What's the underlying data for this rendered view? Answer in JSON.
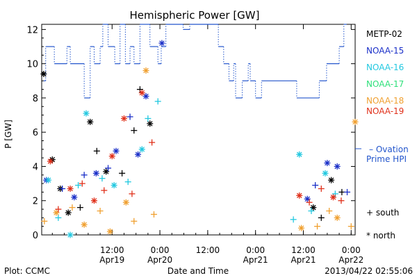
{
  "chart_data": {
    "type": "scatter",
    "title": "Hemispheric Power [GW]",
    "ylabel": "P [GW]",
    "xlabel": "Date and Time",
    "ylim": [
      0,
      12.3
    ],
    "yticks": [
      0,
      2,
      4,
      6,
      8,
      10,
      12
    ],
    "xlim": [
      "2013-04-18 18:20",
      "2013-04-22 01:00"
    ],
    "xticks": [
      {
        "time": "2013-04-19 12:00",
        "line1": "12:00",
        "line2": "Apr19"
      },
      {
        "time": "2013-04-20 00:00",
        "line1": "0:00",
        "line2": "Apr20"
      },
      {
        "time": "2013-04-20 12:00",
        "line1": "12:00",
        "line2": ""
      },
      {
        "time": "2013-04-21 00:00",
        "line1": "0:00",
        "line2": "Apr21"
      },
      {
        "time": "2013-04-21 12:00",
        "line1": "12:00",
        "line2": "Apr21"
      },
      {
        "time": "2013-04-22 00:00",
        "line1": "0:00",
        "line2": "Apr22"
      }
    ],
    "grid": false,
    "legend": {
      "placement": "right",
      "entries": [
        {
          "name": "METP-02",
          "color": "#000000"
        },
        {
          "name": "NOAA-15",
          "color": "#1a2fc8"
        },
        {
          "name": "NOAA-16",
          "color": "#22c8e0"
        },
        {
          "name": "NOAA-17",
          "color": "#2ee07a"
        },
        {
          "name": "NOAA-18",
          "color": "#f0a030"
        },
        {
          "name": "NOAA-19",
          "color": "#e0301a"
        }
      ],
      "ovation_label_1": "– Ovation",
      "ovation_label_2": "Prime HPI",
      "ovation_color": "#2255cc",
      "south_label": "+ south",
      "north_label": "* north"
    },
    "ovation_series": {
      "name": "Ovation Prime HPI",
      "points": [
        [
          "2013-04-18 18:50",
          9
        ],
        [
          "2013-04-18 19:20",
          11
        ],
        [
          "2013-04-18 21:30",
          10
        ],
        [
          "2013-04-19 00:40",
          11
        ],
        [
          "2013-04-19 01:30",
          10
        ],
        [
          "2013-04-19 05:00",
          8
        ],
        [
          "2013-04-19 06:30",
          11
        ],
        [
          "2013-04-19 07:30",
          10
        ],
        [
          "2013-04-19 09:00",
          11
        ],
        [
          "2013-04-19 09:40",
          12.3
        ],
        [
          "2013-04-19 11:00",
          11
        ],
        [
          "2013-04-19 12:40",
          10
        ],
        [
          "2013-04-19 14:00",
          12.3
        ],
        [
          "2013-04-19 15:20",
          10
        ],
        [
          "2013-04-19 16:30",
          11
        ],
        [
          "2013-04-19 17:30",
          10
        ],
        [
          "2013-04-19 19:00",
          12.3
        ],
        [
          "2013-04-19 21:30",
          11
        ],
        [
          "2013-04-19 23:30",
          10
        ],
        [
          "2013-04-20 00:20",
          11
        ],
        [
          "2013-04-20 01:30",
          12.3
        ],
        [
          "2013-04-20 05:50",
          12
        ],
        [
          "2013-04-20 07:30",
          12.3
        ],
        [
          "2013-04-20 14:40",
          11
        ],
        [
          "2013-04-20 16:00",
          10
        ],
        [
          "2013-04-20 17:20",
          9
        ],
        [
          "2013-04-20 18:30",
          10
        ],
        [
          "2013-04-20 19:00",
          8
        ],
        [
          "2013-04-20 20:40",
          9
        ],
        [
          "2013-04-20 22:10",
          10
        ],
        [
          "2013-04-20 22:40",
          9
        ],
        [
          "2013-04-21 00:00",
          8
        ],
        [
          "2013-04-21 01:30",
          9
        ],
        [
          "2013-04-21 10:20",
          8
        ],
        [
          "2013-04-21 16:00",
          9
        ],
        [
          "2013-04-21 17:50",
          10
        ],
        [
          "2013-04-21 21:00",
          11
        ],
        [
          "2013-04-21 22:10",
          12.3
        ]
      ]
    },
    "series": [
      {
        "name": "METP-02",
        "color": "#000000",
        "points": [
          [
            "2013-04-18 18:50",
            9.4,
            "n"
          ],
          [
            "2013-04-18 21:00",
            4.4,
            "n"
          ],
          [
            "2013-04-18 23:00",
            2.7,
            "n"
          ],
          [
            "2013-04-19 01:00",
            1.3,
            "n"
          ],
          [
            "2013-04-19 04:00",
            1.6,
            "s"
          ],
          [
            "2013-04-19 06:30",
            6.6,
            "n"
          ],
          [
            "2013-04-19 08:10",
            4.9,
            "s"
          ],
          [
            "2013-04-19 10:30",
            3.7,
            "n"
          ],
          [
            "2013-04-19 14:30",
            3.6,
            "s"
          ],
          [
            "2013-04-19 17:30",
            6.1,
            "s"
          ],
          [
            "2013-04-19 19:00",
            8.5,
            "s"
          ],
          [
            "2013-04-19 21:30",
            6.5,
            "n"
          ],
          [
            "2013-04-21 14:30",
            1.6,
            "n"
          ],
          [
            "2013-04-21 16:30",
            1.0,
            "s"
          ],
          [
            "2013-04-21 19:00",
            3.2,
            "n"
          ],
          [
            "2013-04-21 21:40",
            2.5,
            "s"
          ]
        ]
      },
      {
        "name": "NOAA-15",
        "color": "#1a2fc8",
        "points": [
          [
            "2013-04-18 19:30",
            3.2,
            "n"
          ],
          [
            "2013-04-18 23:30",
            2.7,
            "s"
          ],
          [
            "2013-04-19 02:30",
            2.2,
            "n"
          ],
          [
            "2013-04-19 05:00",
            3.5,
            "s"
          ],
          [
            "2013-04-19 08:00",
            3.6,
            "n"
          ],
          [
            "2013-04-19 11:00",
            3.9,
            "s"
          ],
          [
            "2013-04-19 13:00",
            4.9,
            "n"
          ],
          [
            "2013-04-19 16:30",
            6.9,
            "s"
          ],
          [
            "2013-04-19 18:30",
            4.7,
            "n"
          ],
          [
            "2013-04-19 20:30",
            8.1,
            "n"
          ],
          [
            "2013-04-20 00:30",
            11.2,
            "n"
          ],
          [
            "2013-04-21 13:00",
            2.1,
            "n"
          ],
          [
            "2013-04-21 15:00",
            2.9,
            "s"
          ],
          [
            "2013-04-21 18:00",
            4.2,
            "n"
          ],
          [
            "2013-04-21 20:30",
            4.0,
            "n"
          ],
          [
            "2013-04-21 23:00",
            2.5,
            "s"
          ]
        ]
      },
      {
        "name": "NOAA-16",
        "color": "#22c8e0",
        "points": [
          [
            "2013-04-18 20:00",
            3.2,
            "n"
          ],
          [
            "2013-04-18 22:30",
            1.0,
            "s"
          ],
          [
            "2013-04-19 01:30",
            0.0,
            "n"
          ],
          [
            "2013-04-19 03:30",
            2.9,
            "s"
          ],
          [
            "2013-04-19 05:30",
            7.1,
            "n"
          ],
          [
            "2013-04-19 09:30",
            3.3,
            "s"
          ],
          [
            "2013-04-19 12:30",
            2.9,
            "n"
          ],
          [
            "2013-04-19 16:00",
            3.1,
            "s"
          ],
          [
            "2013-04-19 19:30",
            5.0,
            "n"
          ],
          [
            "2013-04-19 21:00",
            6.8,
            "s"
          ],
          [
            "2013-04-19 23:30",
            7.8,
            "s"
          ],
          [
            "2013-04-21 09:30",
            0.9,
            "s"
          ],
          [
            "2013-04-21 11:00",
            4.7,
            "n"
          ],
          [
            "2013-04-21 14:00",
            1.4,
            "s"
          ],
          [
            "2013-04-21 17:30",
            3.6,
            "n"
          ],
          [
            "2013-04-21 20:00",
            2.4,
            "s"
          ]
        ]
      },
      {
        "name": "NOAA-18",
        "color": "#f0a030",
        "points": [
          [
            "2013-04-18 19:00",
            0.8,
            "s"
          ],
          [
            "2013-04-18 22:00",
            1.3,
            "n"
          ],
          [
            "2013-04-19 02:00",
            1.6,
            "s"
          ],
          [
            "2013-04-19 05:00",
            0.6,
            "n"
          ],
          [
            "2013-04-19 09:00",
            1.4,
            "s"
          ],
          [
            "2013-04-19 11:30",
            0.2,
            "n"
          ],
          [
            "2013-04-19 15:30",
            1.9,
            "n"
          ],
          [
            "2013-04-19 17:30",
            0.8,
            "s"
          ],
          [
            "2013-04-19 20:30",
            9.6,
            "n"
          ],
          [
            "2013-04-19 22:30",
            1.2,
            "s"
          ],
          [
            "2013-04-21 11:30",
            0.4,
            "n"
          ],
          [
            "2013-04-21 15:30",
            0.5,
            "s"
          ],
          [
            "2013-04-21 18:30",
            1.4,
            "s"
          ],
          [
            "2013-04-21 20:30",
            1.0,
            "n"
          ],
          [
            "2013-04-22 00:00",
            0.5,
            "s"
          ],
          [
            "2013-04-22 01:00",
            6.6,
            "n"
          ]
        ]
      },
      {
        "name": "NOAA-19",
        "color": "#e0301a",
        "points": [
          [
            "2013-04-18 20:30",
            4.3,
            "n"
          ],
          [
            "2013-04-18 22:30",
            1.5,
            "s"
          ],
          [
            "2013-04-19 01:30",
            2.7,
            "n"
          ],
          [
            "2013-04-19 04:30",
            3.0,
            "s"
          ],
          [
            "2013-04-19 07:30",
            2.0,
            "n"
          ],
          [
            "2013-04-19 10:00",
            2.6,
            "s"
          ],
          [
            "2013-04-19 12:00",
            4.6,
            "n"
          ],
          [
            "2013-04-19 15:00",
            6.8,
            "n"
          ],
          [
            "2013-04-19 17:00",
            2.4,
            "s"
          ],
          [
            "2013-04-19 19:30",
            8.3,
            "n"
          ],
          [
            "2013-04-19 22:00",
            5.4,
            "s"
          ],
          [
            "2013-04-21 11:00",
            2.3,
            "n"
          ],
          [
            "2013-04-21 13:30",
            1.9,
            "s"
          ],
          [
            "2013-04-21 16:30",
            2.7,
            "s"
          ],
          [
            "2013-04-21 19:30",
            2.2,
            "n"
          ],
          [
            "2013-04-21 21:30",
            2.0,
            "s"
          ]
        ]
      }
    ]
  },
  "footer": {
    "left": "Plot: CCMC",
    "center": "Date and Time",
    "right": "2013/04/22 02:55:06"
  }
}
